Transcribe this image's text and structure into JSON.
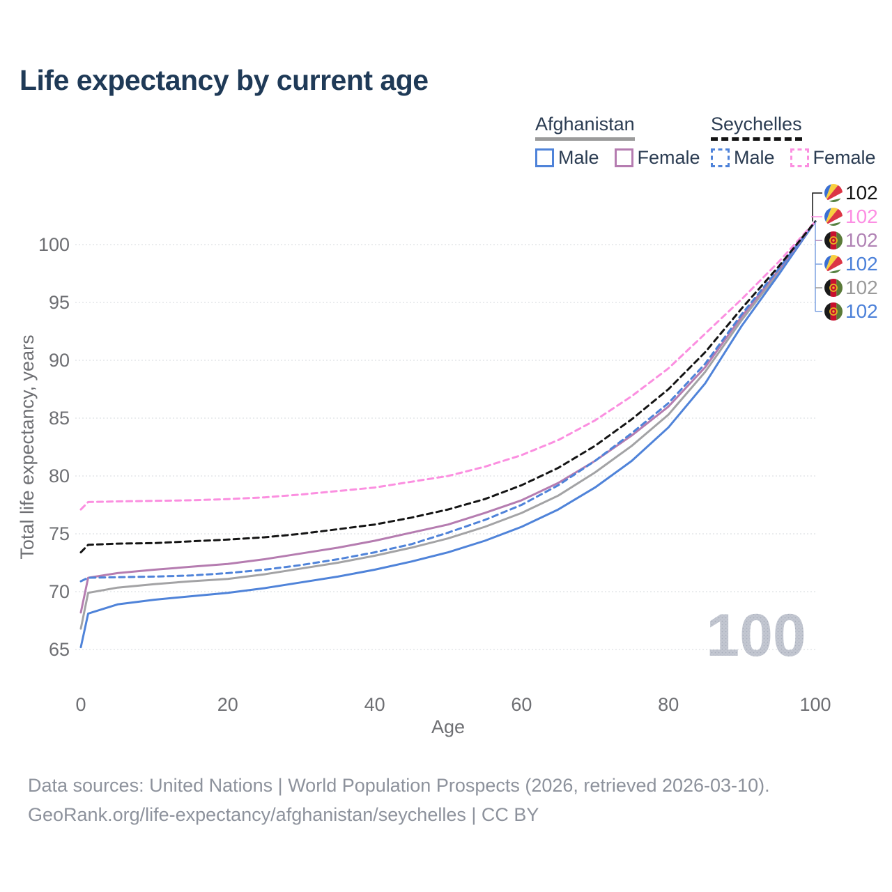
{
  "title": "Life expectancy by current age",
  "legend": {
    "groups": [
      {
        "name": "Afghanistan",
        "underline_style": "solid",
        "underline_color": "#9b9b9b",
        "items": [
          {
            "label": "Male",
            "color": "#4f83d9",
            "dashed": false
          },
          {
            "label": "Female",
            "color": "#b57cb0",
            "dashed": false
          }
        ]
      },
      {
        "name": "Seychelles",
        "underline_style": "dashed",
        "underline_color": "#141414",
        "items": [
          {
            "label": "Male",
            "color": "#4f83d9",
            "dashed": true
          },
          {
            "label": "Female",
            "color": "#fb8fe0",
            "dashed": true
          }
        ]
      }
    ]
  },
  "chart_data": {
    "type": "line",
    "title": "Life expectancy by current age",
    "xlabel": "Age",
    "ylabel": "Total life expectancy, years",
    "xlim": [
      0,
      100
    ],
    "ylim": [
      63.5,
      102.5
    ],
    "xticks": [
      0,
      20,
      40,
      60,
      80,
      100
    ],
    "yticks": [
      65,
      70,
      75,
      80,
      85,
      90,
      95,
      100
    ],
    "grid": true,
    "legend_position": "top-right",
    "watermark": "100",
    "x": [
      0,
      1,
      5,
      10,
      15,
      20,
      25,
      30,
      35,
      40,
      45,
      50,
      55,
      60,
      65,
      70,
      75,
      80,
      85,
      90,
      95,
      100
    ],
    "series": [
      {
        "name": "Afghanistan — Total",
        "country": "afghanistan",
        "sex": "total",
        "color": "#a3a3a5",
        "dashed": false,
        "values": [
          66.8,
          69.9,
          70.35,
          70.65,
          70.9,
          71.1,
          71.5,
          72.0,
          72.5,
          73.1,
          73.8,
          74.6,
          75.6,
          76.8,
          78.3,
          80.3,
          82.6,
          85.3,
          89.0,
          93.5,
          97.6,
          102
        ]
      },
      {
        "name": "Afghanistan — Male",
        "country": "afghanistan",
        "sex": "male",
        "color": "#4f83d9",
        "dashed": false,
        "values": [
          65.2,
          68.1,
          68.9,
          69.3,
          69.6,
          69.9,
          70.3,
          70.8,
          71.3,
          71.9,
          72.6,
          73.4,
          74.4,
          75.6,
          77.1,
          79.0,
          81.3,
          84.2,
          88.0,
          93.0,
          97.4,
          102
        ]
      },
      {
        "name": "Afghanistan — Female",
        "country": "afghanistan",
        "sex": "female",
        "color": "#b57cb0",
        "dashed": false,
        "values": [
          68.2,
          71.2,
          71.6,
          71.9,
          72.15,
          72.4,
          72.8,
          73.3,
          73.8,
          74.4,
          75.1,
          75.8,
          76.8,
          77.9,
          79.4,
          81.3,
          83.5,
          86.0,
          89.4,
          93.8,
          97.8,
          102
        ]
      },
      {
        "name": "Seychelles — Male",
        "country": "seychelles",
        "sex": "male",
        "color": "#4f83d9",
        "dashed": true,
        "values": [
          70.9,
          71.2,
          71.25,
          71.3,
          71.4,
          71.6,
          71.9,
          72.3,
          72.8,
          73.4,
          74.1,
          75.1,
          76.2,
          77.5,
          79.2,
          81.3,
          83.7,
          86.3,
          89.7,
          94.0,
          97.9,
          102
        ]
      },
      {
        "name": "Seychelles — Female",
        "country": "seychelles",
        "sex": "female",
        "color": "#fb8fe0",
        "dashed": true,
        "values": [
          77.1,
          77.75,
          77.8,
          77.85,
          77.9,
          78.0,
          78.15,
          78.4,
          78.7,
          79.0,
          79.5,
          80.0,
          80.8,
          81.8,
          83.1,
          84.8,
          86.9,
          89.3,
          92.3,
          95.3,
          98.5,
          102
        ]
      },
      {
        "name": "Seychelles — Total",
        "country": "seychelles",
        "sex": "total",
        "color": "#141414",
        "dashed": true,
        "values": [
          73.4,
          74.05,
          74.15,
          74.2,
          74.35,
          74.5,
          74.7,
          75.0,
          75.4,
          75.8,
          76.4,
          77.1,
          78.0,
          79.2,
          80.7,
          82.6,
          84.9,
          87.5,
          90.7,
          94.5,
          98.1,
          102
        ]
      }
    ],
    "end_labels": [
      {
        "value": "102",
        "color": "#141414",
        "flag": "seychelles"
      },
      {
        "value": "102",
        "color": "#fc8ee3",
        "flag": "seychelles"
      },
      {
        "value": "102",
        "color": "#b183b5",
        "flag": "afghanistan"
      },
      {
        "value": "102",
        "color": "#4c81d9",
        "flag": "seychelles"
      },
      {
        "value": "102",
        "color": "#9a9a9a",
        "flag": "afghanistan"
      },
      {
        "value": "102",
        "color": "#4c81d9",
        "flag": "afghanistan"
      }
    ]
  },
  "footer": {
    "line1": "Data sources: United Nations | World Population Prospects (2026, retrieved 2026-03-10).",
    "line2": "GeoRank.org/life-expectancy/afghanistan/seychelles | CC BY"
  }
}
